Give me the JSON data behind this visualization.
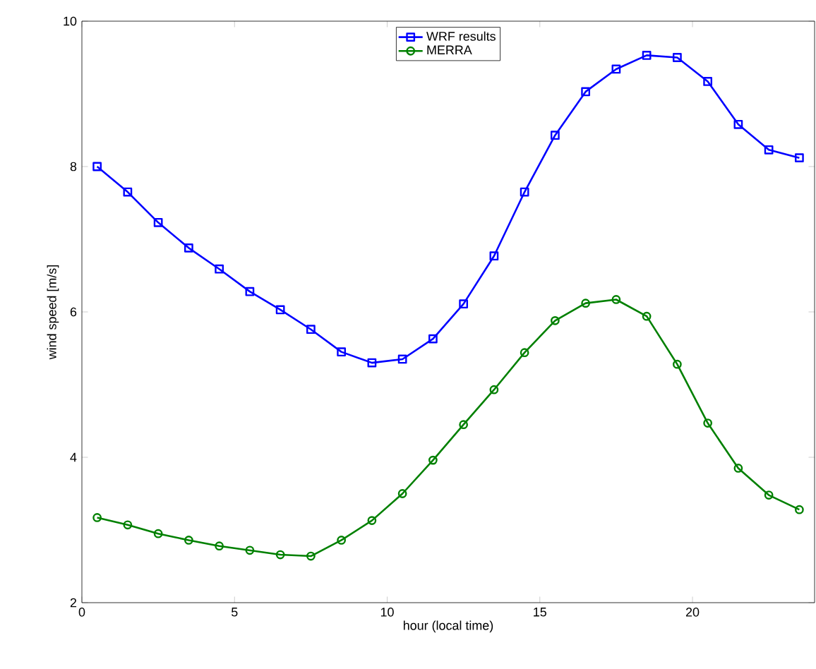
{
  "chart_data": {
    "type": "line",
    "xlabel": "hour (local time)",
    "ylabel": "wind speed [m/s]",
    "x": [
      0.5,
      1.5,
      2.5,
      3.5,
      4.5,
      5.5,
      6.5,
      7.5,
      8.5,
      9.5,
      10.5,
      11.5,
      12.5,
      13.5,
      14.5,
      15.5,
      16.5,
      17.5,
      18.5,
      19.5,
      20.5,
      21.5,
      22.5,
      23.5
    ],
    "series": [
      {
        "name": "WRF results",
        "color": "#0000ff",
        "marker": "square",
        "values": [
          8.0,
          7.65,
          7.23,
          6.88,
          6.59,
          6.28,
          6.03,
          5.76,
          5.45,
          5.3,
          5.35,
          5.63,
          6.11,
          6.77,
          7.65,
          8.43,
          9.03,
          9.34,
          9.53,
          9.5,
          9.17,
          8.58,
          8.23,
          8.12
        ]
      },
      {
        "name": "MERRA",
        "color": "#008000",
        "marker": "circle",
        "values": [
          3.17,
          3.07,
          2.95,
          2.86,
          2.78,
          2.72,
          2.66,
          2.64,
          2.86,
          3.13,
          3.5,
          3.96,
          4.45,
          4.93,
          5.44,
          5.88,
          6.12,
          6.17,
          5.94,
          5.28,
          4.47,
          3.85,
          3.48,
          3.28
        ]
      }
    ],
    "xlim": [
      0,
      24
    ],
    "ylim": [
      2,
      10
    ],
    "xticks": [
      0,
      5,
      10,
      15,
      20
    ],
    "yticks": [
      2,
      4,
      6,
      8,
      10
    ],
    "grid": false,
    "legend": "top",
    "line_style": "solid"
  }
}
